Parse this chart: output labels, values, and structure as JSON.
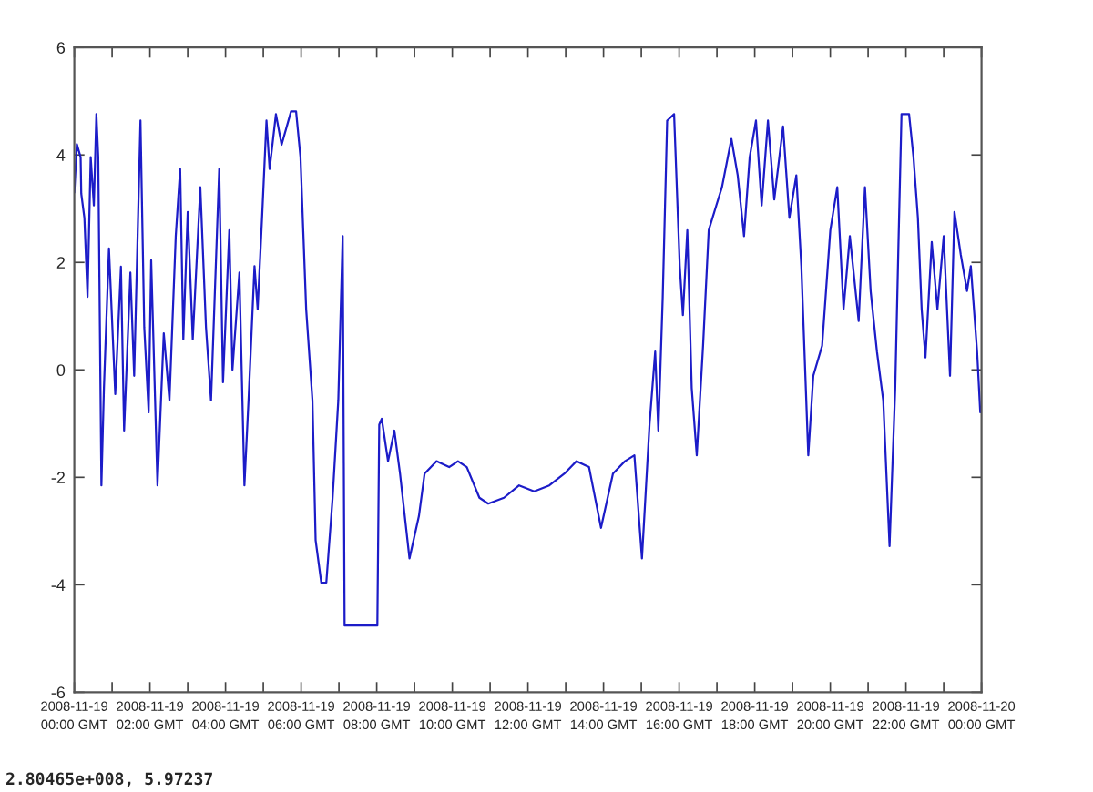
{
  "chart_data": {
    "type": "line",
    "x": [
      "2008-11-19T00:00",
      "2008-11-19T00:04",
      "2008-11-19T00:10",
      "2008-11-19T00:11",
      "2008-11-19T00:16",
      "2008-11-19T00:21",
      "2008-11-19T00:26",
      "2008-11-19T00:31",
      "2008-11-19T00:35",
      "2008-11-19T00:38",
      "2008-11-19T00:43",
      "2008-11-19T00:47",
      "2008-11-19T00:55",
      "2008-11-19T01:05",
      "2008-11-19T01:14",
      "2008-11-19T01:19",
      "2008-11-19T01:29",
      "2008-11-19T01:35",
      "2008-11-19T01:45",
      "2008-11-19T01:51",
      "2008-11-19T01:58",
      "2008-11-19T02:02",
      "2008-11-19T02:12",
      "2008-11-19T02:22",
      "2008-11-19T02:31",
      "2008-11-19T02:41",
      "2008-11-19T02:48",
      "2008-11-19T02:53",
      "2008-11-19T03:00",
      "2008-11-19T03:08",
      "2008-11-19T03:20",
      "2008-11-19T03:29",
      "2008-11-19T03:37",
      "2008-11-19T03:50",
      "2008-11-19T03:56",
      "2008-11-19T04:06",
      "2008-11-19T04:11",
      "2008-11-19T04:22",
      "2008-11-19T04:30",
      "2008-11-19T04:37",
      "2008-11-19T04:46",
      "2008-11-19T04:51",
      "2008-11-19T04:58",
      "2008-11-19T05:05",
      "2008-11-19T05:10",
      "2008-11-19T05:20",
      "2008-11-19T05:29",
      "2008-11-19T05:44",
      "2008-11-19T05:52",
      "2008-11-19T05:59",
      "2008-11-19T06:08",
      "2008-11-19T06:18",
      "2008-11-19T06:23",
      "2008-11-19T06:32",
      "2008-11-19T06:40",
      "2008-11-19T06:50",
      "2008-11-19T06:59",
      "2008-11-19T07:06",
      "2008-11-19T07:09",
      "2008-11-19T07:40",
      "2008-11-19T08:01",
      "2008-11-19T08:04",
      "2008-11-19T08:08",
      "2008-11-19T08:18",
      "2008-11-19T08:28",
      "2008-11-19T08:37",
      "2008-11-19T08:52",
      "2008-11-19T09:07",
      "2008-11-19T09:16",
      "2008-11-19T09:35",
      "2008-11-19T09:55",
      "2008-11-19T10:09",
      "2008-11-19T10:23",
      "2008-11-19T10:43",
      "2008-11-19T10:57",
      "2008-11-19T11:22",
      "2008-11-19T11:46",
      "2008-11-19T12:10",
      "2008-11-19T12:34",
      "2008-11-19T12:58",
      "2008-11-19T13:17",
      "2008-11-19T13:37",
      "2008-11-19T13:56",
      "2008-11-19T14:15",
      "2008-11-19T14:34",
      "2008-11-19T14:49",
      "2008-11-19T15:01",
      "2008-11-19T15:13",
      "2008-11-19T15:22",
      "2008-11-19T15:27",
      "2008-11-19T15:34",
      "2008-11-19T15:41",
      "2008-11-19T15:52",
      "2008-11-19T16:01",
      "2008-11-19T16:06",
      "2008-11-19T16:13",
      "2008-11-19T16:20",
      "2008-11-19T16:28",
      "2008-11-19T16:38",
      "2008-11-19T16:47",
      "2008-11-19T16:59",
      "2008-11-19T17:08",
      "2008-11-19T17:23",
      "2008-11-19T17:33",
      "2008-11-19T17:43",
      "2008-11-19T17:52",
      "2008-11-19T18:02",
      "2008-11-19T18:11",
      "2008-11-19T18:21",
      "2008-11-19T18:31",
      "2008-11-19T18:45",
      "2008-11-19T18:55",
      "2008-11-19T19:06",
      "2008-11-19T19:14",
      "2008-11-19T19:25",
      "2008-11-19T19:33",
      "2008-11-19T19:47",
      "2008-11-19T20:00",
      "2008-11-19T20:11",
      "2008-11-19T20:21",
      "2008-11-19T20:31",
      "2008-11-19T20:45",
      "2008-11-19T20:55",
      "2008-11-19T21:04",
      "2008-11-19T21:14",
      "2008-11-19T21:24",
      "2008-11-19T21:29",
      "2008-11-19T21:34",
      "2008-11-19T21:43",
      "2008-11-19T21:48",
      "2008-11-19T21:53",
      "2008-11-19T22:05",
      "2008-11-19T22:12",
      "2008-11-19T22:19",
      "2008-11-19T22:25",
      "2008-11-19T22:31",
      "2008-11-19T22:41",
      "2008-11-19T22:50",
      "2008-11-19T23:00",
      "2008-11-19T23:10",
      "2008-11-19T23:17",
      "2008-11-19T23:27",
      "2008-11-19T23:37",
      "2008-11-19T23:43",
      "2008-11-19T23:53",
      "2008-11-19T23:58"
    ],
    "series": [
      {
        "color": "#1c1cc8",
        "values": [
          3.3,
          4.2,
          3.96,
          3.28,
          2.83,
          1.36,
          3.96,
          3.06,
          4.76,
          3.96,
          -2.15,
          -0.34,
          2.26,
          -0.45,
          1.92,
          -1.13,
          1.81,
          -0.11,
          4.64,
          0.79,
          -0.79,
          2.04,
          -2.15,
          0.68,
          -0.57,
          2.49,
          3.74,
          0.57,
          2.94,
          0.57,
          3.4,
          0.79,
          -0.57,
          3.74,
          -0.23,
          2.6,
          0.0,
          1.81,
          -2.15,
          -0.45,
          1.93,
          1.13,
          2.83,
          4.64,
          3.74,
          4.76,
          4.19,
          4.81,
          4.81,
          3.96,
          1.13,
          -0.57,
          -3.17,
          -3.96,
          -3.96,
          -2.38,
          -0.57,
          2.49,
          -4.76,
          -4.76,
          -4.76,
          -1.02,
          -0.91,
          -1.7,
          -1.13,
          -1.93,
          -3.51,
          -2.72,
          -1.93,
          -1.7,
          -1.81,
          -1.7,
          -1.81,
          -2.38,
          -2.49,
          -2.38,
          -2.15,
          -2.26,
          -2.15,
          -1.93,
          -1.7,
          -1.81,
          -2.94,
          -1.93,
          -1.7,
          -1.59,
          -3.51,
          -1.02,
          0.34,
          -1.13,
          1.36,
          4.64,
          4.76,
          1.93,
          1.02,
          2.6,
          -0.34,
          -1.59,
          0.45,
          2.6,
          3.06,
          3.4,
          4.3,
          3.62,
          2.49,
          3.96,
          4.64,
          3.06,
          4.64,
          3.17,
          4.53,
          2.83,
          3.62,
          1.93,
          -1.59,
          -0.11,
          0.45,
          2.6,
          3.4,
          1.13,
          2.49,
          0.91,
          3.4,
          1.47,
          0.34,
          -0.57,
          -1.93,
          -3.28,
          -0.34,
          2.26,
          4.76,
          4.76,
          3.96,
          2.83,
          1.13,
          0.23,
          2.38,
          1.13,
          2.49,
          -0.11,
          2.94,
          2.15,
          1.47,
          1.93,
          0.34,
          -0.79
        ]
      }
    ],
    "xlim": [
      "2008-11-19T00:00",
      "2008-11-20T00:00"
    ],
    "xticks": [
      {
        "value": "2008-11-19T00:00",
        "label": "2008-11-19\n00:00 GMT"
      },
      {
        "value": "2008-11-19T01:00",
        "label": null
      },
      {
        "value": "2008-11-19T02:00",
        "label": "2008-11-19\n02:00 GMT"
      },
      {
        "value": "2008-11-19T03:00",
        "label": null
      },
      {
        "value": "2008-11-19T04:00",
        "label": "2008-11-19\n04:00 GMT"
      },
      {
        "value": "2008-11-19T05:00",
        "label": null
      },
      {
        "value": "2008-11-19T06:00",
        "label": "2008-11-19\n06:00 GMT"
      },
      {
        "value": "2008-11-19T07:00",
        "label": null
      },
      {
        "value": "2008-11-19T08:00",
        "label": "2008-11-19\n08:00 GMT"
      },
      {
        "value": "2008-11-19T09:00",
        "label": null
      },
      {
        "value": "2008-11-19T10:00",
        "label": "2008-11-19\n10:00 GMT"
      },
      {
        "value": "2008-11-19T11:00",
        "label": null
      },
      {
        "value": "2008-11-19T12:00",
        "label": "2008-11-19\n12:00 GMT"
      },
      {
        "value": "2008-11-19T13:00",
        "label": null
      },
      {
        "value": "2008-11-19T14:00",
        "label": "2008-11-19\n14:00 GMT"
      },
      {
        "value": "2008-11-19T15:00",
        "label": null
      },
      {
        "value": "2008-11-19T16:00",
        "label": "2008-11-19\n16:00 GMT"
      },
      {
        "value": "2008-11-19T17:00",
        "label": null
      },
      {
        "value": "2008-11-19T18:00",
        "label": "2008-11-19\n18:00 GMT"
      },
      {
        "value": "2008-11-19T19:00",
        "label": null
      },
      {
        "value": "2008-11-19T20:00",
        "label": "2008-11-19\n20:00 GMT"
      },
      {
        "value": "2008-11-19T21:00",
        "label": null
      },
      {
        "value": "2008-11-19T22:00",
        "label": "2008-11-19\n22:00 GMT"
      },
      {
        "value": "2008-11-19T23:00",
        "label": null
      },
      {
        "value": "2008-11-20T00:00",
        "label": "2008-11-20\n00:00 GMT"
      }
    ],
    "ylim": [
      -6,
      6
    ],
    "yticks": [
      -6,
      -4,
      -2,
      0,
      2,
      4,
      6
    ],
    "grid": false,
    "marker": "none",
    "line_style": "solid",
    "annotations": [
      "2.80465e+008, 5.97237"
    ]
  }
}
